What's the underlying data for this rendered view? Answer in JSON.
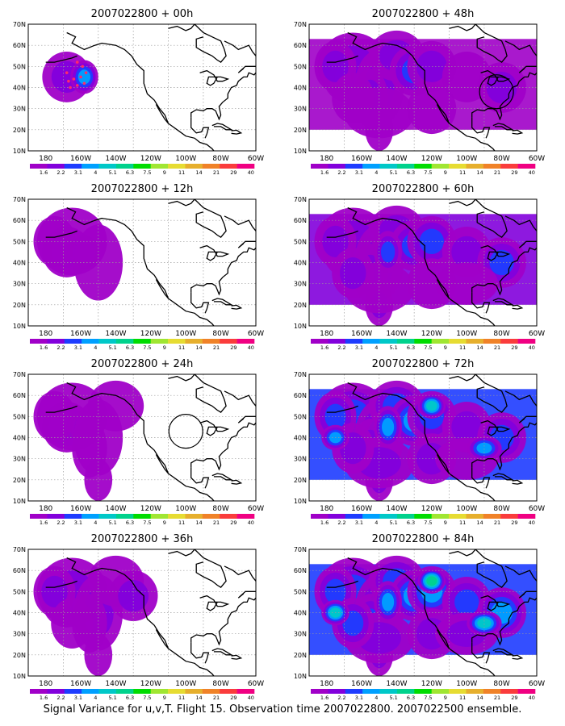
{
  "caption": "Signal Variance for u,v,T. Flight 15. Observation time 2007022800. 2007022500 ensemble.",
  "axes": {
    "x_ticks": [
      "180",
      "160W",
      "140W",
      "120W",
      "100W",
      "80W",
      "60W"
    ],
    "y_ticks": [
      "10N",
      "20N",
      "30N",
      "40N",
      "50N",
      "60N",
      "70N"
    ]
  },
  "colorbar": {
    "labels": [
      "1.6",
      "2.2",
      "3.1",
      "4",
      "5.1",
      "6.3",
      "7.5",
      "9",
      "11",
      "14",
      "21",
      "29",
      "40"
    ],
    "colors": [
      "#a000c8",
      "#8200dc",
      "#1e3cff",
      "#00a0ff",
      "#00c8c8",
      "#00d28c",
      "#00dc00",
      "#a0e632",
      "#e6dc32",
      "#e6af2d",
      "#f08228",
      "#fa3c3c",
      "#f00082"
    ]
  },
  "colors": {
    "coast": "#000000",
    "grid": "#9a9a9a"
  },
  "panels": [
    {
      "title": "2007022800 + 00h",
      "intensity": 0,
      "circle": null,
      "dots": true
    },
    {
      "title": "2007022800 + 12h",
      "intensity": 1,
      "circle": null,
      "dots": false
    },
    {
      "title": "2007022800 + 24h",
      "intensity": 2,
      "circle": {
        "lon": -100,
        "lat": 43
      },
      "dots": false
    },
    {
      "title": "2007022800 + 36h",
      "intensity": 3,
      "circle": null,
      "dots": false
    },
    {
      "title": "2007022800 + 48h",
      "intensity": 4,
      "circle": {
        "lon": -83,
        "lat": 38
      },
      "dots": false
    },
    {
      "title": "2007022800 + 60h",
      "intensity": 5,
      "circle": null,
      "dots": false
    },
    {
      "title": "2007022800 + 72h",
      "intensity": 6,
      "circle": null,
      "dots": false
    },
    {
      "title": "2007022800 + 84h",
      "intensity": 7,
      "circle": null,
      "dots": false
    }
  ]
}
